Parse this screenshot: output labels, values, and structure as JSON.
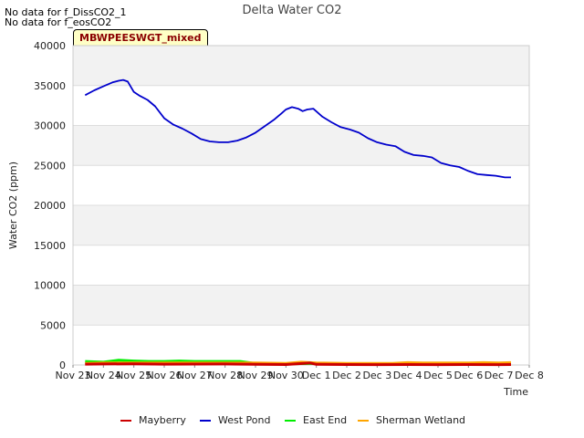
{
  "messages": [
    "No data for f_DissCO2_1",
    "No data for f_eosCO2"
  ],
  "badge": "MBWPEESWGT_mixed",
  "chart_data": {
    "type": "line",
    "title": "Delta Water CO2",
    "xlabel": "Time",
    "ylabel": "Water CO2 (ppm)",
    "ylim": [
      0,
      40000
    ],
    "yticks": [
      0,
      5000,
      10000,
      15000,
      20000,
      25000,
      30000,
      35000,
      40000
    ],
    "xlim": [
      0,
      15
    ],
    "xtick_labels": [
      "Nov 23",
      "Nov 24",
      "Nov 25",
      "Nov 26",
      "Nov 27",
      "Nov 28",
      "Nov 29",
      "Nov 30",
      "Dec 1",
      "Dec 2",
      "Dec 3",
      "Dec 4",
      "Dec 5",
      "Dec 6",
      "Dec 7",
      "Dec 8"
    ],
    "grid": true,
    "legend_position": "bottom",
    "series": [
      {
        "name": "Mayberry",
        "color": "#cc0000",
        "x": [
          0.4,
          1.0,
          2.0,
          3.0,
          4.0,
          5.0,
          6.0,
          7.0,
          7.8,
          8.0,
          9.0,
          10.0,
          11.0,
          12.0,
          13.0,
          14.0,
          14.4
        ],
        "y": [
          100,
          120,
          150,
          100,
          110,
          120,
          80,
          60,
          250,
          80,
          60,
          50,
          60,
          50,
          60,
          50,
          60
        ]
      },
      {
        "name": "West Pond",
        "color": "#0000cc",
        "x": [
          0.4,
          0.7,
          1.0,
          1.3,
          1.5,
          1.65,
          1.8,
          2.0,
          2.2,
          2.45,
          2.7,
          3.0,
          3.3,
          3.6,
          3.9,
          4.2,
          4.5,
          4.8,
          5.1,
          5.4,
          5.7,
          6.0,
          6.3,
          6.6,
          6.85,
          7.0,
          7.2,
          7.4,
          7.55,
          7.7,
          7.9,
          8.2,
          8.5,
          8.8,
          9.1,
          9.4,
          9.7,
          10.0,
          10.3,
          10.6,
          10.9,
          11.2,
          11.5,
          11.8,
          12.1,
          12.4,
          12.7,
          13.0,
          13.3,
          13.6,
          13.9,
          14.2,
          14.4
        ],
        "y": [
          33800,
          34400,
          34900,
          35400,
          35600,
          35700,
          35500,
          34200,
          33700,
          33200,
          32400,
          30900,
          30100,
          29600,
          29000,
          28300,
          28000,
          27900,
          27900,
          28100,
          28500,
          29100,
          29900,
          30700,
          31500,
          32000,
          32300,
          32100,
          31800,
          32000,
          32100,
          31100,
          30400,
          29800,
          29500,
          29100,
          28400,
          27900,
          27600,
          27400,
          26700,
          26300,
          26200,
          26000,
          25300,
          25000,
          24800,
          24300,
          23900,
          23800,
          23700,
          23500,
          23500
        ]
      },
      {
        "name": "East End",
        "color": "#00ee00",
        "x": [
          0.4,
          1.0,
          1.5,
          2.0,
          2.5,
          3.0,
          3.5,
          4.0,
          4.5,
          5.0,
          5.5,
          6.0,
          7.0,
          8.0,
          9.0,
          10.0,
          11.0,
          11.5,
          12.0,
          13.0,
          14.0,
          14.4
        ],
        "y": [
          450,
          350,
          600,
          500,
          450,
          450,
          500,
          450,
          450,
          450,
          450,
          200,
          150,
          200,
          150,
          100,
          150,
          200,
          150,
          150,
          150,
          200
        ]
      },
      {
        "name": "Sherman Wetland",
        "color": "#ffa500",
        "x": [
          0.4,
          1.0,
          2.0,
          3.0,
          4.0,
          5.0,
          6.0,
          7.0,
          7.5,
          8.0,
          9.0,
          10.0,
          10.5,
          11.0,
          11.5,
          12.0,
          13.0,
          13.5,
          14.0,
          14.4
        ],
        "y": [
          200,
          250,
          250,
          250,
          250,
          250,
          250,
          200,
          350,
          250,
          200,
          200,
          200,
          300,
          250,
          250,
          250,
          300,
          250,
          300
        ]
      }
    ]
  }
}
